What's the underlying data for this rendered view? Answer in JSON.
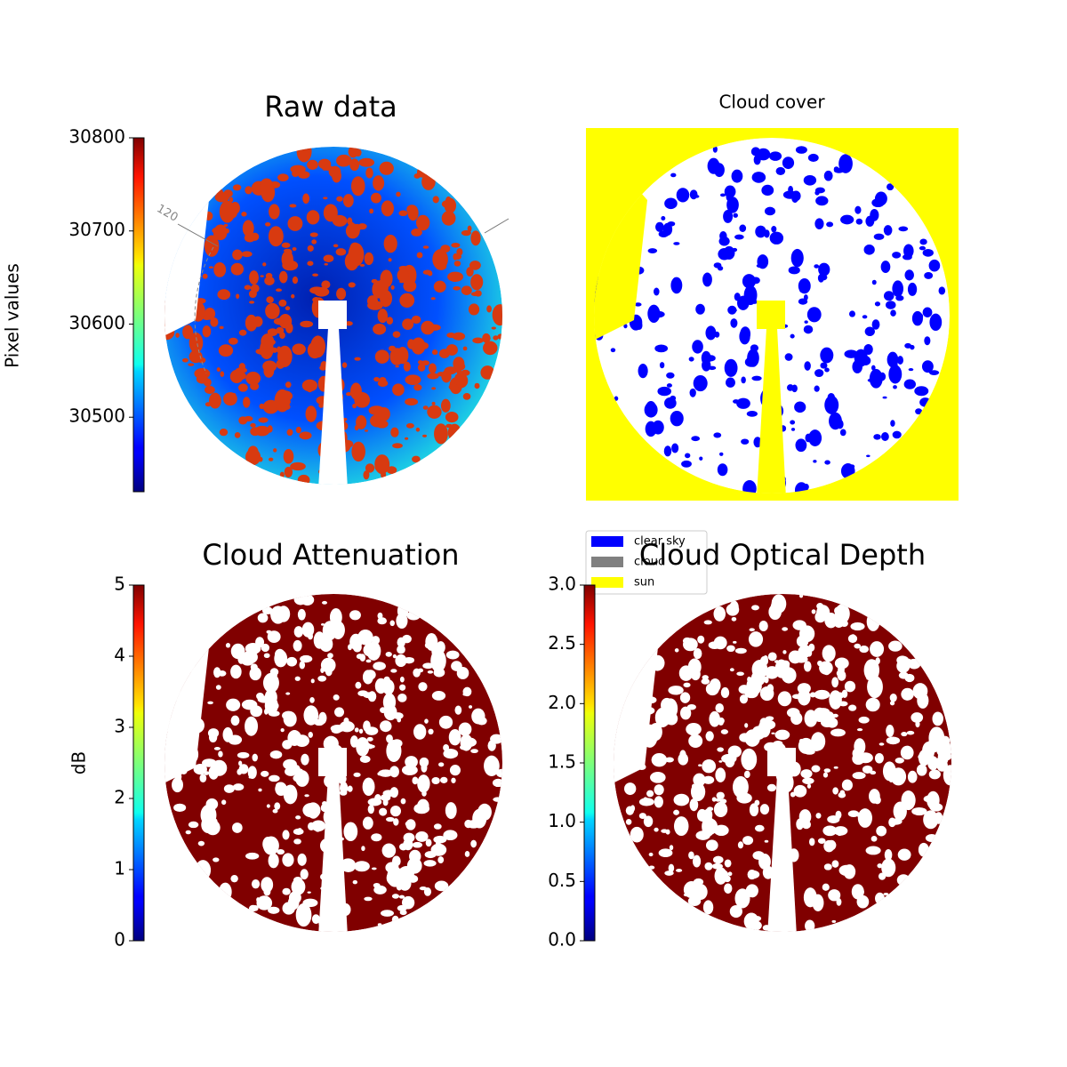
{
  "chart_data": [
    {
      "type": "image",
      "title": "Raw data",
      "colorbar_label": "Pixel values",
      "colormap": "jet",
      "ylim": [
        30420,
        30800
      ],
      "yticks": [
        30500,
        30600,
        30700,
        30800
      ],
      "annotation": "120",
      "background": "#ffffff",
      "disk_color": "#1a40e0",
      "blob_color": "#d83a10"
    },
    {
      "type": "image",
      "title": "Cloud cover",
      "background": "#ffff00",
      "disk_color": "#ffffff",
      "blob_color": "#0000ff",
      "legend": [
        {
          "name": "clear sky",
          "color": "#0000ff"
        },
        {
          "name": "cloud",
          "color": "#808080"
        },
        {
          "name": "sun",
          "color": "#ffff00"
        }
      ],
      "legend_corner": "lower left"
    },
    {
      "type": "image",
      "title": "Cloud Attenuation",
      "colorbar_label": "dB",
      "colormap": "jet",
      "ylim": [
        0,
        5
      ],
      "yticks": [
        0,
        1,
        2,
        3,
        4,
        5
      ],
      "background": "#ffffff",
      "disk_color": "#800000",
      "blob_color": "#ffffff"
    },
    {
      "type": "image",
      "title": "Cloud Optical Depth",
      "colormap": "jet",
      "ylim": [
        0,
        3
      ],
      "yticks": [
        {
          "value": 0,
          "label": "0.0"
        },
        0.5,
        {
          "value": 1,
          "label": "1.0"
        },
        1.5,
        {
          "value": 2,
          "label": "2.0"
        },
        2.5,
        {
          "value": 3,
          "label": "3.0"
        }
      ],
      "background": "#ffffff",
      "disk_color": "#800000",
      "blob_color": "#ffffff"
    }
  ]
}
